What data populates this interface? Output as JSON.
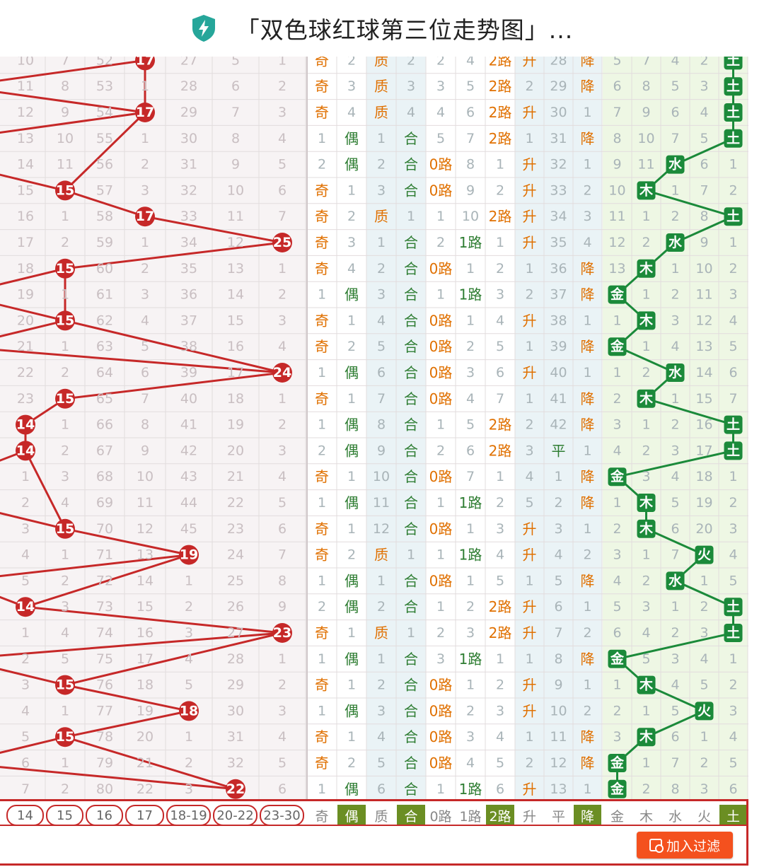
{
  "header": {
    "title": "「双色球红球第三位走势图」..."
  },
  "colors": {
    "accent_red": "#c62828",
    "odd_orange": "#e07000",
    "even_green": "#2e7d32",
    "element_green": "#1b8a3a",
    "shield_teal": "#26a69a"
  },
  "columns": {
    "ball": [
      "14",
      "15",
      "16",
      "17",
      "18-19",
      "20-22",
      "23-30"
    ],
    "parity": [
      "奇",
      "偶"
    ],
    "prime": [
      "质",
      "合"
    ],
    "road": [
      "0路",
      "1路",
      "2路"
    ],
    "trend": [
      "升",
      "平",
      "降"
    ],
    "element": [
      "金",
      "木",
      "水",
      "火",
      "土"
    ]
  },
  "footer_selected": {
    "parity": 1,
    "prime": 1,
    "road": 2,
    "trend": 2,
    "element": 4
  },
  "add_filter_label": "加入过滤",
  "chart_data": {
    "type": "table",
    "rows": [
      {
        "ball": [
          "10",
          "7",
          "52",
          "17",
          "27",
          "5",
          "1"
        ],
        "hit": 3,
        "num": "17",
        "parity": [
          0,
          "2"
        ],
        "prime": [
          0,
          "2"
        ],
        "road": [
          "2",
          "4",
          2
        ],
        "trend": [
          -1,
          "28",
          2
        ],
        "element": [
          "5",
          "7",
          "4",
          "2",
          4
        ]
      },
      {
        "ball": [
          "11",
          "8",
          "53",
          "1",
          "28",
          "6",
          "2"
        ],
        "hit": -1,
        "num": "",
        "parity": [
          0,
          "3"
        ],
        "prime": [
          0,
          "3"
        ],
        "road": [
          "3",
          "5",
          2
        ],
        "trend": [
          "2",
          "29",
          2
        ],
        "element": [
          "6",
          "8",
          "5",
          "3",
          4
        ]
      },
      {
        "ball": [
          "12",
          "9",
          "54",
          "17",
          "29",
          "7",
          "3"
        ],
        "hit": 3,
        "num": "17",
        "parity": [
          0,
          "4"
        ],
        "prime": [
          0,
          "4"
        ],
        "road": [
          "4",
          "6",
          2
        ],
        "trend": [
          0,
          "30",
          "1"
        ],
        "element": [
          "7",
          "9",
          "6",
          "4",
          4
        ]
      },
      {
        "ball": [
          "13",
          "10",
          "55",
          "1",
          "30",
          "8",
          "4"
        ],
        "hit": -1,
        "num": "",
        "parity": [
          "1",
          1
        ],
        "prime": [
          "1",
          1
        ],
        "road": [
          "5",
          "7",
          2
        ],
        "trend": [
          "1",
          "31",
          2
        ],
        "element": [
          "8",
          "10",
          "7",
          "5",
          4
        ]
      },
      {
        "ball": [
          "14",
          "11",
          "56",
          "2",
          "31",
          "9",
          "5"
        ],
        "hit": -1,
        "num": "",
        "parity": [
          "2",
          1
        ],
        "prime": [
          "2",
          1
        ],
        "road": [
          0,
          "8",
          "1"
        ],
        "trend": [
          0,
          "32",
          "1"
        ],
        "element": [
          "9",
          "11",
          2,
          "6",
          "1"
        ]
      },
      {
        "ball": [
          "15",
          "15",
          "57",
          "3",
          "32",
          "10",
          "6"
        ],
        "hit": 1,
        "num": "15",
        "parity": [
          0,
          "1"
        ],
        "prime": [
          "3",
          1
        ],
        "road": [
          0,
          "9",
          "2"
        ],
        "trend": [
          0,
          "33",
          "2"
        ],
        "element": [
          "10",
          1,
          "1",
          "7",
          "2"
        ]
      },
      {
        "ball": [
          "16",
          "1",
          "58",
          "17",
          "33",
          "11",
          "7"
        ],
        "hit": 3,
        "num": "17",
        "parity": [
          0,
          "2"
        ],
        "prime": [
          0,
          "1"
        ],
        "road": [
          "1",
          "10",
          2
        ],
        "trend": [
          0,
          "34",
          "3"
        ],
        "element": [
          "11",
          "1",
          "2",
          "8",
          4
        ]
      },
      {
        "ball": [
          "17",
          "2",
          "59",
          "1",
          "34",
          "12",
          "25"
        ],
        "hit": 6,
        "num": "25",
        "parity": [
          0,
          "3"
        ],
        "prime": [
          "1",
          1
        ],
        "road": [
          "2",
          1,
          "1"
        ],
        "trend": [
          0,
          "35",
          "4"
        ],
        "element": [
          "12",
          "2",
          2,
          "9",
          "1"
        ]
      },
      {
        "ball": [
          "18",
          "15",
          "60",
          "2",
          "35",
          "13",
          "1"
        ],
        "hit": 1,
        "num": "15",
        "parity": [
          0,
          "4"
        ],
        "prime": [
          "2",
          1
        ],
        "road": [
          0,
          "1",
          "2"
        ],
        "trend": [
          "1",
          "36",
          2
        ],
        "element": [
          "13",
          1,
          "1",
          "10",
          "2"
        ]
      },
      {
        "ball": [
          "19",
          "1",
          "61",
          "3",
          "36",
          "14",
          "2"
        ],
        "hit": -1,
        "num": "",
        "parity": [
          "1",
          1
        ],
        "prime": [
          "3",
          1
        ],
        "road": [
          "1",
          1,
          "3"
        ],
        "trend": [
          "2",
          "37",
          2
        ],
        "element": [
          0,
          "1",
          "2",
          "11",
          "3"
        ]
      },
      {
        "ball": [
          "20",
          "15",
          "62",
          "4",
          "37",
          "15",
          "3"
        ],
        "hit": 1,
        "num": "15",
        "parity": [
          0,
          "1"
        ],
        "prime": [
          "4",
          1
        ],
        "road": [
          0,
          "1",
          "4"
        ],
        "trend": [
          0,
          "38",
          "1"
        ],
        "element": [
          "1",
          1,
          "3",
          "12",
          "4"
        ]
      },
      {
        "ball": [
          "21",
          "1",
          "63",
          "5",
          "38",
          "16",
          "4"
        ],
        "hit": -1,
        "num": "",
        "parity": [
          0,
          "2"
        ],
        "prime": [
          "5",
          1
        ],
        "road": [
          0,
          "2",
          "5"
        ],
        "trend": [
          "1",
          "39",
          2
        ],
        "element": [
          0,
          "1",
          "4",
          "13",
          "5"
        ]
      },
      {
        "ball": [
          "22",
          "2",
          "64",
          "6",
          "39",
          "17",
          "24"
        ],
        "hit": 6,
        "num": "24",
        "parity": [
          "1",
          1
        ],
        "prime": [
          "6",
          1
        ],
        "road": [
          0,
          "3",
          "6"
        ],
        "trend": [
          0,
          "40",
          "1"
        ],
        "element": [
          "1",
          "2",
          2,
          "14",
          "6"
        ]
      },
      {
        "ball": [
          "23",
          "15",
          "65",
          "7",
          "40",
          "18",
          "1"
        ],
        "hit": 1,
        "num": "15",
        "parity": [
          0,
          "1"
        ],
        "prime": [
          "7",
          1
        ],
        "road": [
          0,
          "4",
          "7"
        ],
        "trend": [
          "1",
          "41",
          2
        ],
        "element": [
          "2",
          1,
          "1",
          "15",
          "7"
        ]
      },
      {
        "ball": [
          "14",
          "1",
          "66",
          "8",
          "41",
          "19",
          "2"
        ],
        "hit": 0,
        "num": "14",
        "parity": [
          "1",
          1
        ],
        "prime": [
          "8",
          1
        ],
        "road": [
          "1",
          "5",
          2
        ],
        "trend": [
          "2",
          "42",
          2
        ],
        "element": [
          "3",
          "1",
          "2",
          "16",
          4
        ]
      },
      {
        "ball": [
          "14",
          "2",
          "67",
          "9",
          "42",
          "20",
          "3"
        ],
        "hit": 0,
        "num": "14",
        "parity": [
          "2",
          1
        ],
        "prime": [
          "9",
          1
        ],
        "road": [
          "2",
          "6",
          2
        ],
        "trend": [
          "3",
          1,
          "1"
        ],
        "element": [
          "4",
          "2",
          "3",
          "17",
          4
        ]
      },
      {
        "ball": [
          "1",
          "3",
          "68",
          "10",
          "43",
          "21",
          "4"
        ],
        "hit": -1,
        "num": "",
        "parity": [
          0,
          "1"
        ],
        "prime": [
          "10",
          1
        ],
        "road": [
          0,
          "7",
          "1"
        ],
        "trend": [
          "4",
          "1",
          2
        ],
        "element": [
          0,
          "3",
          "4",
          "18",
          "1"
        ]
      },
      {
        "ball": [
          "2",
          "4",
          "69",
          "11",
          "44",
          "22",
          "5"
        ],
        "hit": -1,
        "num": "",
        "parity": [
          "1",
          1
        ],
        "prime": [
          "11",
          1
        ],
        "road": [
          "1",
          1,
          "2"
        ],
        "trend": [
          "5",
          "2",
          2
        ],
        "element": [
          "1",
          1,
          "5",
          "19",
          "2"
        ]
      },
      {
        "ball": [
          "3",
          "15",
          "70",
          "12",
          "45",
          "23",
          "6"
        ],
        "hit": 1,
        "num": "15",
        "parity": [
          0,
          "1"
        ],
        "prime": [
          "12",
          1
        ],
        "road": [
          0,
          "1",
          "3"
        ],
        "trend": [
          0,
          "3",
          "1"
        ],
        "element": [
          "2",
          1,
          "6",
          "20",
          "3"
        ]
      },
      {
        "ball": [
          "4",
          "1",
          "71",
          "13",
          "19",
          "24",
          "7"
        ],
        "hit": 4,
        "num": "19",
        "parity": [
          0,
          "2"
        ],
        "prime": [
          0,
          "1"
        ],
        "road": [
          "1",
          1,
          "4"
        ],
        "trend": [
          0,
          "4",
          "2"
        ],
        "element": [
          "3",
          "1",
          "7",
          3,
          "4"
        ]
      },
      {
        "ball": [
          "5",
          "2",
          "72",
          "14",
          "1",
          "25",
          "8"
        ],
        "hit": -1,
        "num": "",
        "parity": [
          "1",
          1
        ],
        "prime": [
          "1",
          1
        ],
        "road": [
          0,
          "1",
          "5"
        ],
        "trend": [
          "1",
          "5",
          2
        ],
        "element": [
          "4",
          "2",
          2,
          "1",
          "5"
        ]
      },
      {
        "ball": [
          "14",
          "3",
          "73",
          "15",
          "2",
          "26",
          "9"
        ],
        "hit": 0,
        "num": "14",
        "parity": [
          "2",
          1
        ],
        "prime": [
          "2",
          1
        ],
        "road": [
          "1",
          "2",
          2
        ],
        "trend": [
          0,
          "6",
          "1"
        ],
        "element": [
          "5",
          "3",
          "1",
          "2",
          4
        ]
      },
      {
        "ball": [
          "1",
          "4",
          "74",
          "16",
          "3",
          "27",
          "23"
        ],
        "hit": 6,
        "num": "23",
        "parity": [
          0,
          "1"
        ],
        "prime": [
          0,
          "1"
        ],
        "road": [
          "2",
          "3",
          2
        ],
        "trend": [
          0,
          "7",
          "2"
        ],
        "element": [
          "6",
          "4",
          "2",
          "3",
          4
        ]
      },
      {
        "ball": [
          "2",
          "5",
          "75",
          "17",
          "4",
          "28",
          "1"
        ],
        "hit": -1,
        "num": "",
        "parity": [
          "1",
          1
        ],
        "prime": [
          "1",
          1
        ],
        "road": [
          "3",
          1,
          "1"
        ],
        "trend": [
          "1",
          "8",
          2
        ],
        "element": [
          0,
          "5",
          "3",
          "4",
          "1"
        ]
      },
      {
        "ball": [
          "3",
          "15",
          "76",
          "18",
          "5",
          "29",
          "2"
        ],
        "hit": 1,
        "num": "15",
        "parity": [
          0,
          "1"
        ],
        "prime": [
          "2",
          1
        ],
        "road": [
          0,
          "1",
          "2"
        ],
        "trend": [
          0,
          "9",
          "1"
        ],
        "element": [
          "1",
          1,
          "4",
          "5",
          "2"
        ]
      },
      {
        "ball": [
          "4",
          "1",
          "77",
          "19",
          "18",
          "30",
          "3"
        ],
        "hit": 4,
        "num": "18",
        "parity": [
          "1",
          1
        ],
        "prime": [
          "3",
          1
        ],
        "road": [
          0,
          "2",
          "3"
        ],
        "trend": [
          0,
          "10",
          "2"
        ],
        "element": [
          "2",
          "1",
          "5",
          3,
          "3"
        ]
      },
      {
        "ball": [
          "5",
          "15",
          "78",
          "20",
          "1",
          "31",
          "4"
        ],
        "hit": 1,
        "num": "15",
        "parity": [
          0,
          "1"
        ],
        "prime": [
          "4",
          1
        ],
        "road": [
          0,
          "3",
          "4"
        ],
        "trend": [
          "1",
          "11",
          2
        ],
        "element": [
          "3",
          1,
          "6",
          "1",
          "4"
        ]
      },
      {
        "ball": [
          "6",
          "1",
          "79",
          "21",
          "2",
          "32",
          "5"
        ],
        "hit": -1,
        "num": "",
        "parity": [
          0,
          "2"
        ],
        "prime": [
          "5",
          1
        ],
        "road": [
          0,
          "4",
          "5"
        ],
        "trend": [
          "2",
          "12",
          2
        ],
        "element": [
          0,
          "1",
          "7",
          "2",
          "5"
        ]
      },
      {
        "ball": [
          "7",
          "2",
          "80",
          "22",
          "3",
          "22",
          "6"
        ],
        "hit": 5,
        "num": "22",
        "parity": [
          "1",
          1
        ],
        "prime": [
          "6",
          1
        ],
        "road": [
          "1",
          1,
          "6"
        ],
        "trend": [
          0,
          "13",
          "1"
        ],
        "element": [
          0,
          "2",
          "8",
          "3",
          "6"
        ]
      }
    ]
  }
}
